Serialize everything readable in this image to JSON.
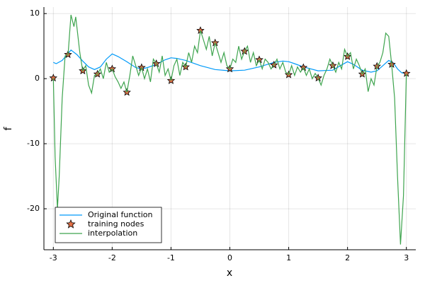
{
  "chart_data": {
    "type": "line",
    "xlabel": "x",
    "ylabel": "f",
    "xlim": [
      -3.16,
      3.16
    ],
    "ylim": [
      -26.3,
      11
    ],
    "xticks": [
      -3,
      -2,
      -1,
      0,
      1,
      2,
      3
    ],
    "yticks": [
      -20,
      -10,
      0,
      10
    ],
    "grid": true,
    "legend": "bottom-left",
    "series": [
      {
        "name": "Original function",
        "type": "line",
        "color": "#009af9",
        "x": [
          -3,
          -2.95,
          -2.85,
          -2.7,
          -2.6,
          -2.5,
          -2.4,
          -2.3,
          -2.2,
          -2.1,
          -2.0,
          -1.9,
          -1.75,
          -1.6,
          -1.5,
          -1.4,
          -1.25,
          -1.1,
          -1.0,
          -0.9,
          -0.75,
          -0.5,
          -0.25,
          0,
          0.25,
          0.5,
          0.75,
          0.9,
          1.0,
          1.1,
          1.25,
          1.5,
          1.75,
          1.9,
          2.0,
          2.1,
          2.25,
          2.4,
          2.5,
          2.6,
          2.7,
          2.78,
          2.85,
          2.92,
          3
        ],
        "values": [
          2.5,
          2.3,
          2.8,
          4.4,
          3.7,
          2.7,
          1.8,
          1.4,
          1.8,
          3.0,
          3.8,
          3.4,
          2.6,
          1.7,
          1.5,
          1.7,
          2.2,
          2.9,
          3.2,
          3.1,
          2.8,
          2.0,
          1.4,
          1.2,
          1.3,
          1.8,
          2.5,
          2.7,
          2.6,
          2.3,
          1.8,
          1.2,
          1.3,
          2.1,
          2.6,
          2.2,
          1.3,
          1.0,
          1.2,
          2.0,
          2.8,
          2.4,
          1.5,
          0.9,
          0.8
        ]
      },
      {
        "name": "training nodes",
        "type": "scatter",
        "color": "#e26f46",
        "x": [
          -3,
          -2.75,
          -2.5,
          -2.25,
          -2,
          -1.75,
          -1.5,
          -1.25,
          -1,
          -0.75,
          -0.5,
          -0.25,
          0,
          0.25,
          0.5,
          0.75,
          1,
          1.25,
          1.5,
          1.75,
          2,
          2.25,
          2.5,
          2.75,
          3
        ],
        "values": [
          0.1,
          3.7,
          1.2,
          0.7,
          1.5,
          -2.1,
          1.7,
          2.3,
          -0.3,
          1.8,
          7.4,
          5.5,
          1.5,
          4.2,
          2.9,
          2.1,
          0.6,
          1.7,
          0.1,
          2.0,
          3.4,
          0.7,
          1.9,
          2.2,
          0.8
        ]
      },
      {
        "name": "interpolation",
        "type": "line",
        "color": "#3ea44e",
        "x": [
          -3,
          -2.97,
          -2.93,
          -2.9,
          -2.85,
          -2.8,
          -2.75,
          -2.7,
          -2.65,
          -2.62,
          -2.55,
          -2.5,
          -2.45,
          -2.4,
          -2.35,
          -2.3,
          -2.25,
          -2.2,
          -2.15,
          -2.1,
          -2.05,
          -2,
          -1.95,
          -1.9,
          -1.85,
          -1.8,
          -1.75,
          -1.7,
          -1.65,
          -1.6,
          -1.55,
          -1.5,
          -1.45,
          -1.4,
          -1.35,
          -1.3,
          -1.25,
          -1.2,
          -1.15,
          -1.1,
          -1.05,
          -1,
          -0.95,
          -0.9,
          -0.85,
          -0.8,
          -0.75,
          -0.7,
          -0.65,
          -0.6,
          -0.55,
          -0.5,
          -0.45,
          -0.4,
          -0.35,
          -0.3,
          -0.25,
          -0.2,
          -0.15,
          -0.1,
          -0.05,
          0,
          0.05,
          0.1,
          0.15,
          0.2,
          0.25,
          0.3,
          0.35,
          0.4,
          0.45,
          0.5,
          0.55,
          0.6,
          0.65,
          0.7,
          0.75,
          0.8,
          0.85,
          0.9,
          0.95,
          1,
          1.05,
          1.1,
          1.15,
          1.2,
          1.25,
          1.3,
          1.35,
          1.4,
          1.45,
          1.5,
          1.55,
          1.6,
          1.65,
          1.7,
          1.75,
          1.8,
          1.85,
          1.9,
          1.95,
          2,
          2.05,
          2.1,
          2.15,
          2.2,
          2.25,
          2.3,
          2.35,
          2.4,
          2.45,
          2.5,
          2.55,
          2.6,
          2.65,
          2.7,
          2.75,
          2.8,
          2.85,
          2.9,
          2.95,
          3
        ],
        "values": [
          0.1,
          -12,
          -20,
          -15,
          -3,
          3.5,
          3.7,
          9.8,
          8,
          9.5,
          4,
          1.2,
          2,
          -1,
          -2.2,
          0.5,
          0.7,
          1.5,
          0,
          2.5,
          1,
          1.5,
          0.3,
          -0.5,
          -1.5,
          -0.5,
          -2.1,
          0.5,
          3.5,
          2,
          0.5,
          1.7,
          0,
          1.5,
          -0.5,
          3,
          2.3,
          1,
          3.5,
          0.5,
          1.5,
          -0.3,
          2,
          3,
          0.5,
          2.5,
          1.8,
          4,
          2.5,
          5,
          4,
          7.4,
          6,
          4.5,
          6.5,
          3.5,
          5.5,
          4,
          2.5,
          4,
          2,
          1.5,
          3,
          2.5,
          5,
          3,
          4.2,
          5,
          2.5,
          4,
          2,
          2.9,
          1.5,
          3,
          2.5,
          1.5,
          2.1,
          3,
          1.5,
          2.5,
          1,
          0.6,
          2,
          0.5,
          1.8,
          1,
          1.7,
          0.5,
          1.5,
          0,
          0.8,
          0.1,
          -1,
          0.5,
          1.5,
          3,
          2,
          1,
          2.5,
          1.5,
          4.5,
          3.4,
          4,
          1.5,
          3,
          2,
          0.7,
          1.5,
          -2,
          0,
          -1,
          1.9,
          2.5,
          4,
          7,
          6.5,
          2.2,
          -3,
          -15,
          -25.5,
          -18,
          0.8
        ]
      }
    ]
  }
}
